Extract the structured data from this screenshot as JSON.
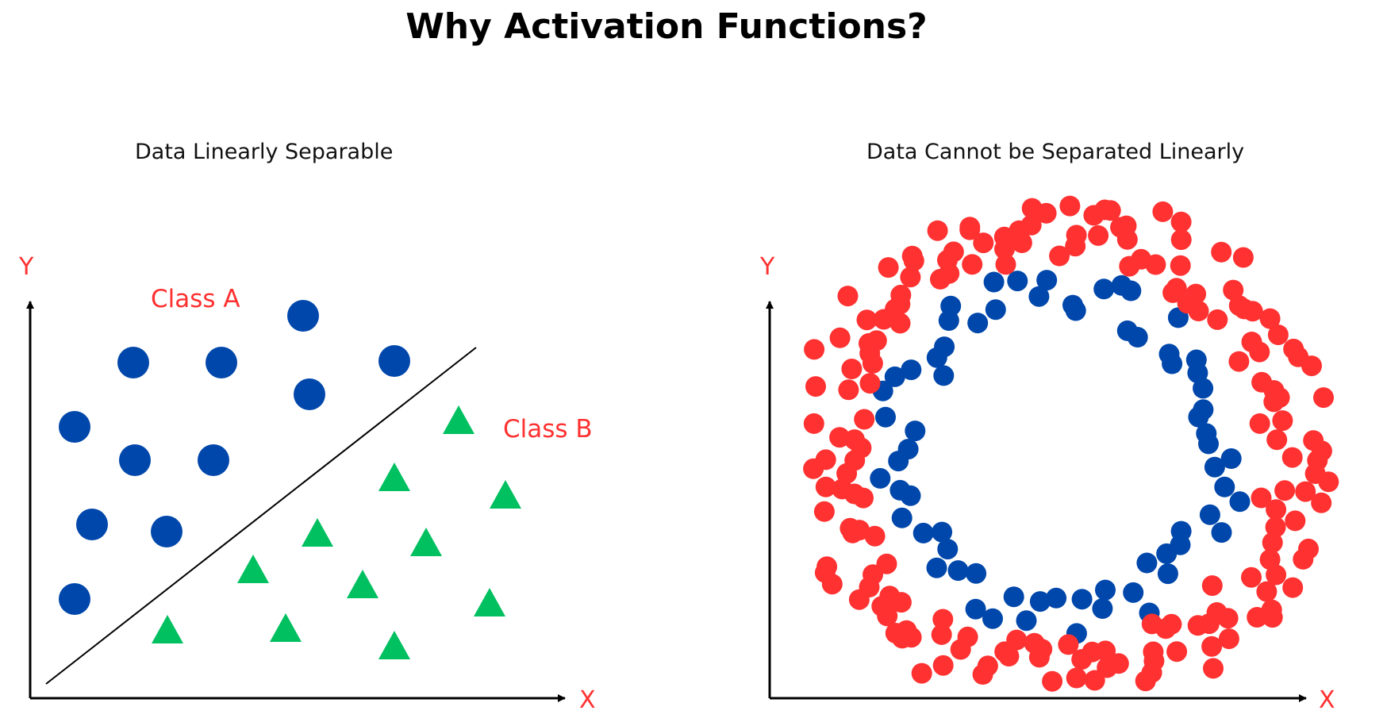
{
  "title": "Why Activation Functions?",
  "colors": {
    "blue_points": "#0047ab",
    "green_points": "#00c060",
    "red_points": "#ff3131",
    "label_red": "#ff3131",
    "axis": "#000000"
  },
  "left_panel": {
    "title": "Data Linearly Separable",
    "x_axis_label": "X",
    "y_axis_label": "Y",
    "class_a_label": "Class A",
    "class_b_label": "Class B"
  },
  "right_panel": {
    "title": "Data Cannot be Separated Linearly",
    "x_axis_label": "X",
    "y_axis_label": "Y"
  }
}
